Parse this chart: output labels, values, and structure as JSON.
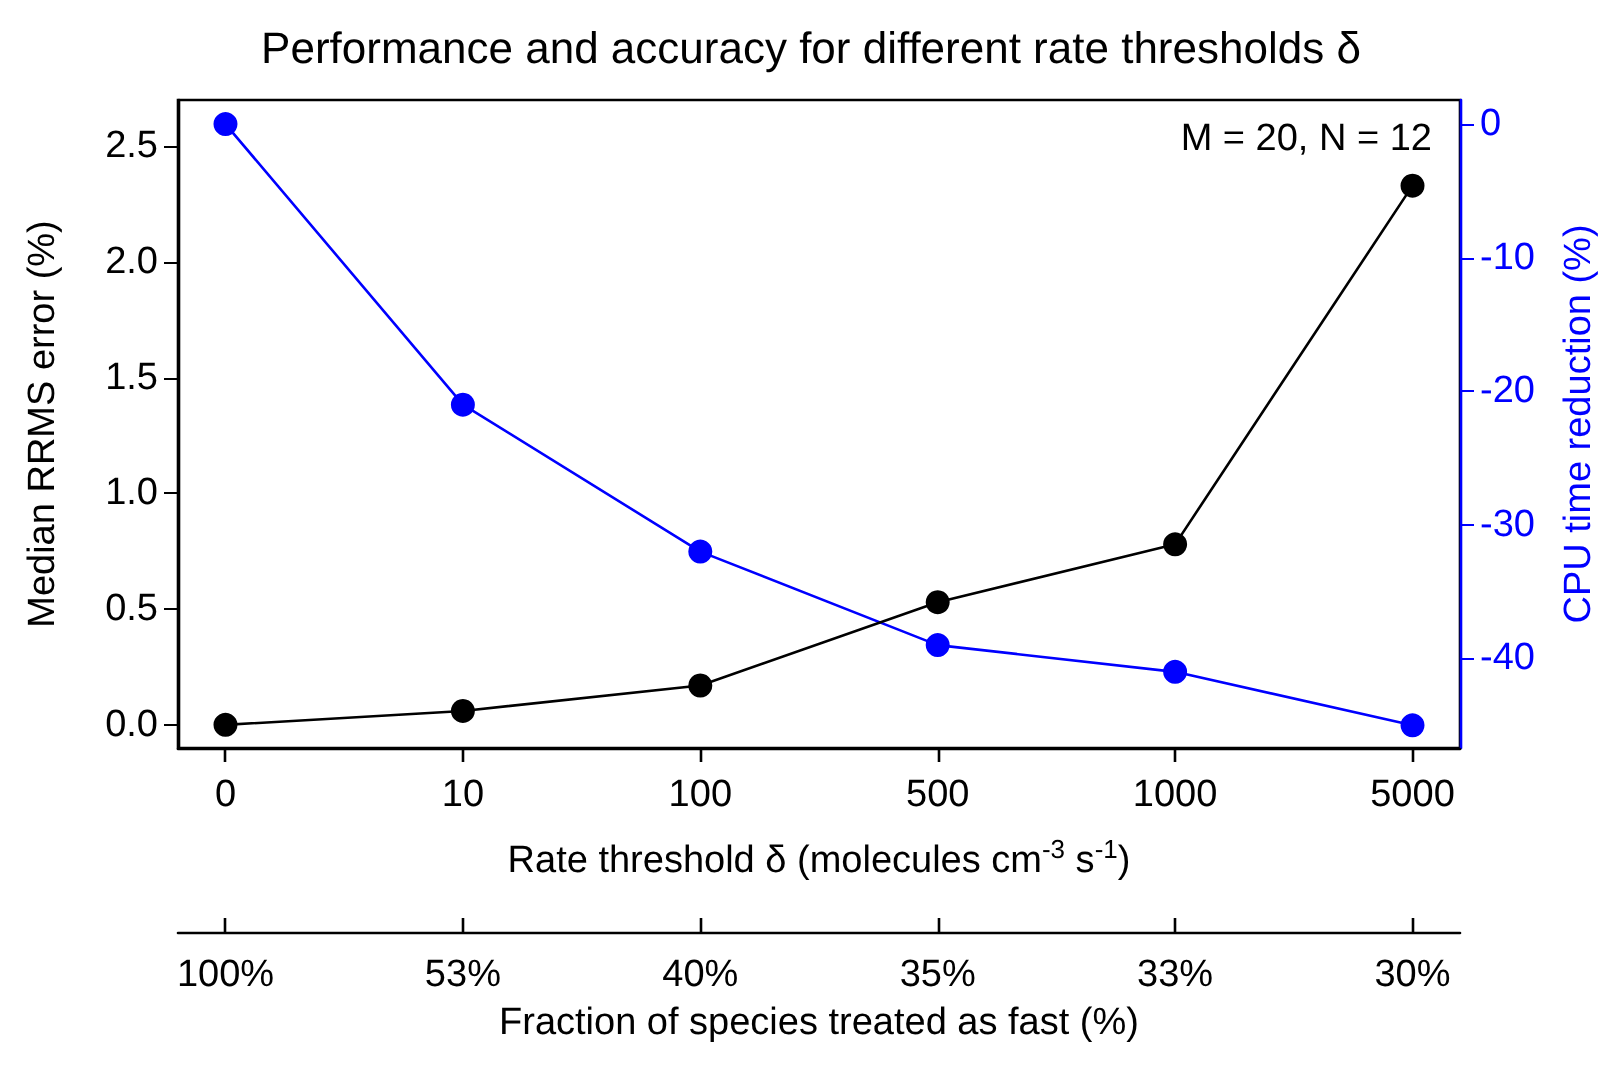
{
  "chart_data": {
    "type": "line",
    "title": "Performance and accuracy for different rate thresholds δ",
    "xlabel": "Rate threshold δ (molecules cm$^{-3}$ s$^{-1}$)",
    "ylabel": "Median RRMS error (%)",
    "y2label": "CPU time reduction (%)",
    "x2label": "Fraction of species treated as fast (%)",
    "categories": [
      "0",
      "10",
      "100",
      "500",
      "1000",
      "5000"
    ],
    "series": [
      {
        "color": "#000000",
        "values": [
          0.0,
          0.06,
          0.17,
          0.53,
          0.78,
          2.33
        ]
      },
      {
        "color": "#0000ff",
        "axis": "y2",
        "values": [
          0,
          -21,
          -32,
          -39,
          -41,
          -45
        ]
      }
    ],
    "ylim": [
      -0.1,
      2.7
    ],
    "yticks": [
      {
        "value": 0,
        "label": "0.0"
      },
      0.5,
      {
        "value": 1,
        "label": "1.0"
      },
      1.5,
      {
        "value": 2,
        "label": "2.0"
      },
      2.5
    ],
    "y2lim": [
      -46.7,
      1.8
    ],
    "y2ticks": [
      -40,
      -30,
      -20,
      -10,
      0
    ],
    "annotations": [
      "M = 20, N = 12",
      {
        "text": "100%",
        "x": "0"
      },
      {
        "text": "53%",
        "x": "10"
      },
      {
        "text": "40%",
        "x": "100"
      },
      {
        "text": "35%",
        "x": "500"
      },
      {
        "text": "33%",
        "x": "1000"
      },
      {
        "text": "30%",
        "x": "5000"
      }
    ],
    "marker": "circle",
    "line_style": "solid",
    "grid": false
  }
}
